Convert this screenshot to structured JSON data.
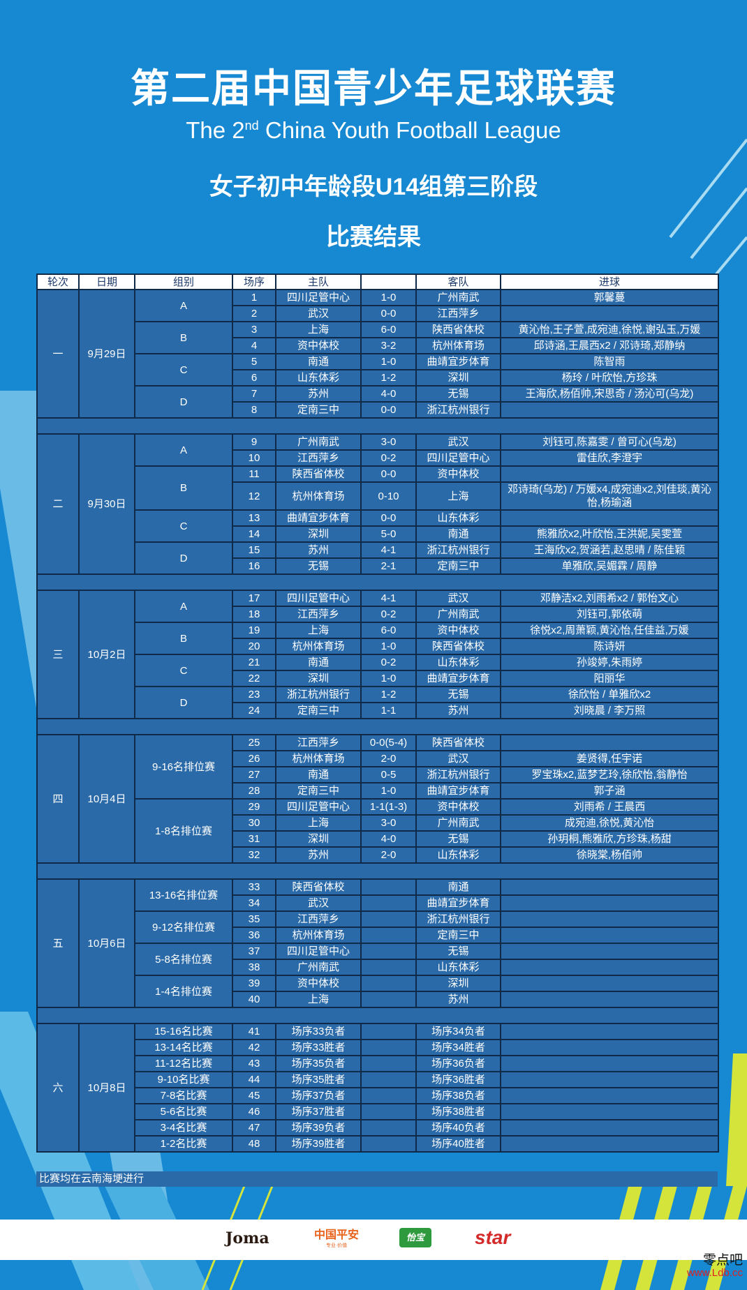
{
  "header": {
    "title_cn": "第二届中国青少年足球联赛",
    "title_en_pre": "The 2",
    "title_en_sup": "nd",
    "title_en_post": " China Youth Football League",
    "subtitle": "女子初中年龄段U14组第三阶段",
    "section": "比赛结果"
  },
  "colors": {
    "background": "#1689d2",
    "cell": "#2a6aa8",
    "border": "#0e2a48",
    "stripe_accent": "#d4e43a",
    "header_text": "#1c3a6a"
  },
  "table": {
    "columns": [
      "轮次",
      "日期",
      "组别",
      "场序",
      "主队",
      "",
      "客队",
      "进球"
    ],
    "rounds": [
      {
        "label": "一",
        "date": "9月29日",
        "groups": [
          {
            "label": "A",
            "matches": [
              {
                "no": "1",
                "home": "四川足管中心",
                "score": "1-0",
                "away": "广州南武",
                "scorers": "郭馨蔓"
              },
              {
                "no": "2",
                "home": "武汉",
                "score": "0-0",
                "away": "江西萍乡",
                "scorers": ""
              }
            ]
          },
          {
            "label": "B",
            "matches": [
              {
                "no": "3",
                "home": "上海",
                "score": "6-0",
                "away": "陕西省体校",
                "scorers": "黄沁怡,王子萱,成宛迪,徐悦,谢弘玉,万媛"
              },
              {
                "no": "4",
                "home": "资中体校",
                "score": "3-2",
                "away": "杭州体育场",
                "scorers": "邱诗涵,王晨西x2 / 邓诗琦,郑静纳"
              }
            ]
          },
          {
            "label": "C",
            "matches": [
              {
                "no": "5",
                "home": "南通",
                "score": "1-0",
                "away": "曲靖宜步体育",
                "scorers": "陈智雨"
              },
              {
                "no": "6",
                "home": "山东体彩",
                "score": "1-2",
                "away": "深圳",
                "scorers": "杨玲 / 叶欣怡,方珍珠"
              }
            ]
          },
          {
            "label": "D",
            "matches": [
              {
                "no": "7",
                "home": "苏州",
                "score": "4-0",
                "away": "无锡",
                "scorers": "王海欣,杨佰帅,宋思奇 / 汤沁可(乌龙)"
              },
              {
                "no": "8",
                "home": "定南三中",
                "score": "0-0",
                "away": "浙江杭州银行",
                "scorers": ""
              }
            ]
          }
        ]
      },
      {
        "label": "二",
        "date": "9月30日",
        "groups": [
          {
            "label": "A",
            "matches": [
              {
                "no": "9",
                "home": "广州南武",
                "score": "3-0",
                "away": "武汉",
                "scorers": "刘钰可,陈嘉雯 / 曾可心(乌龙)"
              },
              {
                "no": "10",
                "home": "江西萍乡",
                "score": "0-2",
                "away": "四川足管中心",
                "scorers": "雷佳欣,李澄宇"
              }
            ]
          },
          {
            "label": "B",
            "matches": [
              {
                "no": "11",
                "home": "陕西省体校",
                "score": "0-0",
                "away": "资中体校",
                "scorers": ""
              },
              {
                "no": "12",
                "home": "杭州体育场",
                "score": "0-10",
                "away": "上海",
                "scorers": "邓诗琦(乌龙) / 万媛x4,成宛迪x2,刘佳琰,黄沁怡,杨瑜涵"
              }
            ]
          },
          {
            "label": "C",
            "matches": [
              {
                "no": "13",
                "home": "曲靖宜步体育",
                "score": "0-0",
                "away": "山东体彩",
                "scorers": ""
              },
              {
                "no": "14",
                "home": "深圳",
                "score": "5-0",
                "away": "南通",
                "scorers": "熊雅欣x2,叶欣怡,王洪妮,吴雯萱"
              }
            ]
          },
          {
            "label": "D",
            "matches": [
              {
                "no": "15",
                "home": "苏州",
                "score": "4-1",
                "away": "浙江杭州银行",
                "scorers": "王海欣x2,贺涵若,赵思晴 / 陈佳颖"
              },
              {
                "no": "16",
                "home": "无锡",
                "score": "2-1",
                "away": "定南三中",
                "scorers": "单雅欣,吴媚霖 / 周静"
              }
            ]
          }
        ]
      },
      {
        "label": "三",
        "date": "10月2日",
        "groups": [
          {
            "label": "A",
            "matches": [
              {
                "no": "17",
                "home": "四川足管中心",
                "score": "4-1",
                "away": "武汉",
                "scorers": "邓静洁x2,刘雨希x2 / 郭怡文心"
              },
              {
                "no": "18",
                "home": "江西萍乡",
                "score": "0-2",
                "away": "广州南武",
                "scorers": "刘钰可,郭依萌"
              }
            ]
          },
          {
            "label": "B",
            "matches": [
              {
                "no": "19",
                "home": "上海",
                "score": "6-0",
                "away": "资中体校",
                "scorers": "徐悦x2,周萧颖,黄沁怡,任佳益,万媛"
              },
              {
                "no": "20",
                "home": "杭州体育场",
                "score": "1-0",
                "away": "陕西省体校",
                "scorers": "陈诗妍"
              }
            ]
          },
          {
            "label": "C",
            "matches": [
              {
                "no": "21",
                "home": "南通",
                "score": "0-2",
                "away": "山东体彩",
                "scorers": "孙竣婷,朱雨婷"
              },
              {
                "no": "22",
                "home": "深圳",
                "score": "1-0",
                "away": "曲靖宜步体育",
                "scorers": "阳丽华"
              }
            ]
          },
          {
            "label": "D",
            "matches": [
              {
                "no": "23",
                "home": "浙江杭州银行",
                "score": "1-2",
                "away": "无锡",
                "scorers": "徐欣怡 / 单雅欣x2"
              },
              {
                "no": "24",
                "home": "定南三中",
                "score": "1-1",
                "away": "苏州",
                "scorers": "刘晓晨 / 李万照"
              }
            ]
          }
        ]
      },
      {
        "label": "四",
        "date": "10月4日",
        "groups": [
          {
            "label": "9-16名排位赛",
            "matches": [
              {
                "no": "25",
                "home": "江西萍乡",
                "score": "0-0(5-4)",
                "away": "陕西省体校",
                "scorers": ""
              },
              {
                "no": "26",
                "home": "杭州体育场",
                "score": "2-0",
                "away": "武汉",
                "scorers": "姜贤得,任宇诺"
              },
              {
                "no": "27",
                "home": "南通",
                "score": "0-5",
                "away": "浙江杭州银行",
                "scorers": "罗宝珠x2,蓝梦艺玲,徐欣怡,翁静怡"
              },
              {
                "no": "28",
                "home": "定南三中",
                "score": "1-0",
                "away": "曲靖宜步体育",
                "scorers": "郭子涵"
              }
            ]
          },
          {
            "label": "1-8名排位赛",
            "matches": [
              {
                "no": "29",
                "home": "四川足管中心",
                "score": "1-1(1-3)",
                "away": "资中体校",
                "scorers": "刘雨希 / 王晨西"
              },
              {
                "no": "30",
                "home": "上海",
                "score": "3-0",
                "away": "广州南武",
                "scorers": "成宛迪,徐悦,黄沁怡"
              },
              {
                "no": "31",
                "home": "深圳",
                "score": "4-0",
                "away": "无锡",
                "scorers": "孙玥桐,熊雅欣,方珍珠,杨甜"
              },
              {
                "no": "32",
                "home": "苏州",
                "score": "2-0",
                "away": "山东体彩",
                "scorers": "徐晓棠,杨佰帅"
              }
            ]
          }
        ]
      },
      {
        "label": "五",
        "date": "10月6日",
        "groups": [
          {
            "label": "13-16名排位赛",
            "matches": [
              {
                "no": "33",
                "home": "陕西省体校",
                "score": "",
                "away": "南通",
                "scorers": ""
              },
              {
                "no": "34",
                "home": "武汉",
                "score": "",
                "away": "曲靖宜步体育",
                "scorers": ""
              }
            ]
          },
          {
            "label": "9-12名排位赛",
            "matches": [
              {
                "no": "35",
                "home": "江西萍乡",
                "score": "",
                "away": "浙江杭州银行",
                "scorers": ""
              },
              {
                "no": "36",
                "home": "杭州体育场",
                "score": "",
                "away": "定南三中",
                "scorers": ""
              }
            ]
          },
          {
            "label": "5-8名排位赛",
            "matches": [
              {
                "no": "37",
                "home": "四川足管中心",
                "score": "",
                "away": "无锡",
                "scorers": ""
              },
              {
                "no": "38",
                "home": "广州南武",
                "score": "",
                "away": "山东体彩",
                "scorers": ""
              }
            ]
          },
          {
            "label": "1-4名排位赛",
            "matches": [
              {
                "no": "39",
                "home": "资中体校",
                "score": "",
                "away": "深圳",
                "scorers": ""
              },
              {
                "no": "40",
                "home": "上海",
                "score": "",
                "away": "苏州",
                "scorers": ""
              }
            ]
          }
        ]
      },
      {
        "label": "六",
        "date": "10月8日",
        "groups": [
          {
            "label": "15-16名比赛",
            "matches": [
              {
                "no": "41",
                "home": "场序33负者",
                "score": "",
                "away": "场序34负者",
                "scorers": ""
              }
            ]
          },
          {
            "label": "13-14名比赛",
            "matches": [
              {
                "no": "42",
                "home": "场序33胜者",
                "score": "",
                "away": "场序34胜者",
                "scorers": ""
              }
            ]
          },
          {
            "label": "11-12名比赛",
            "matches": [
              {
                "no": "43",
                "home": "场序35负者",
                "score": "",
                "away": "场序36负者",
                "scorers": ""
              }
            ]
          },
          {
            "label": "9-10名比赛",
            "matches": [
              {
                "no": "44",
                "home": "场序35胜者",
                "score": "",
                "away": "场序36胜者",
                "scorers": ""
              }
            ]
          },
          {
            "label": "7-8名比赛",
            "matches": [
              {
                "no": "45",
                "home": "场序37负者",
                "score": "",
                "away": "场序38负者",
                "scorers": ""
              }
            ]
          },
          {
            "label": "5-6名比赛",
            "matches": [
              {
                "no": "46",
                "home": "场序37胜者",
                "score": "",
                "away": "场序38胜者",
                "scorers": ""
              }
            ]
          },
          {
            "label": "3-4名比赛",
            "matches": [
              {
                "no": "47",
                "home": "场序39负者",
                "score": "",
                "away": "场序40负者",
                "scorers": ""
              }
            ]
          },
          {
            "label": "1-2名比赛",
            "matches": [
              {
                "no": "48",
                "home": "场序39胜者",
                "score": "",
                "away": "场序40胜者",
                "scorers": ""
              }
            ]
          }
        ]
      }
    ],
    "note": "比赛均在云南海埂进行"
  },
  "sponsors": {
    "joma": "Joma",
    "pingan": "中国平安",
    "pingan_tag": "专业·价值",
    "yibao": "怡宝",
    "star": "star"
  },
  "watermark": {
    "cn": "零点吧",
    "url": "www.Ldb.cc"
  }
}
